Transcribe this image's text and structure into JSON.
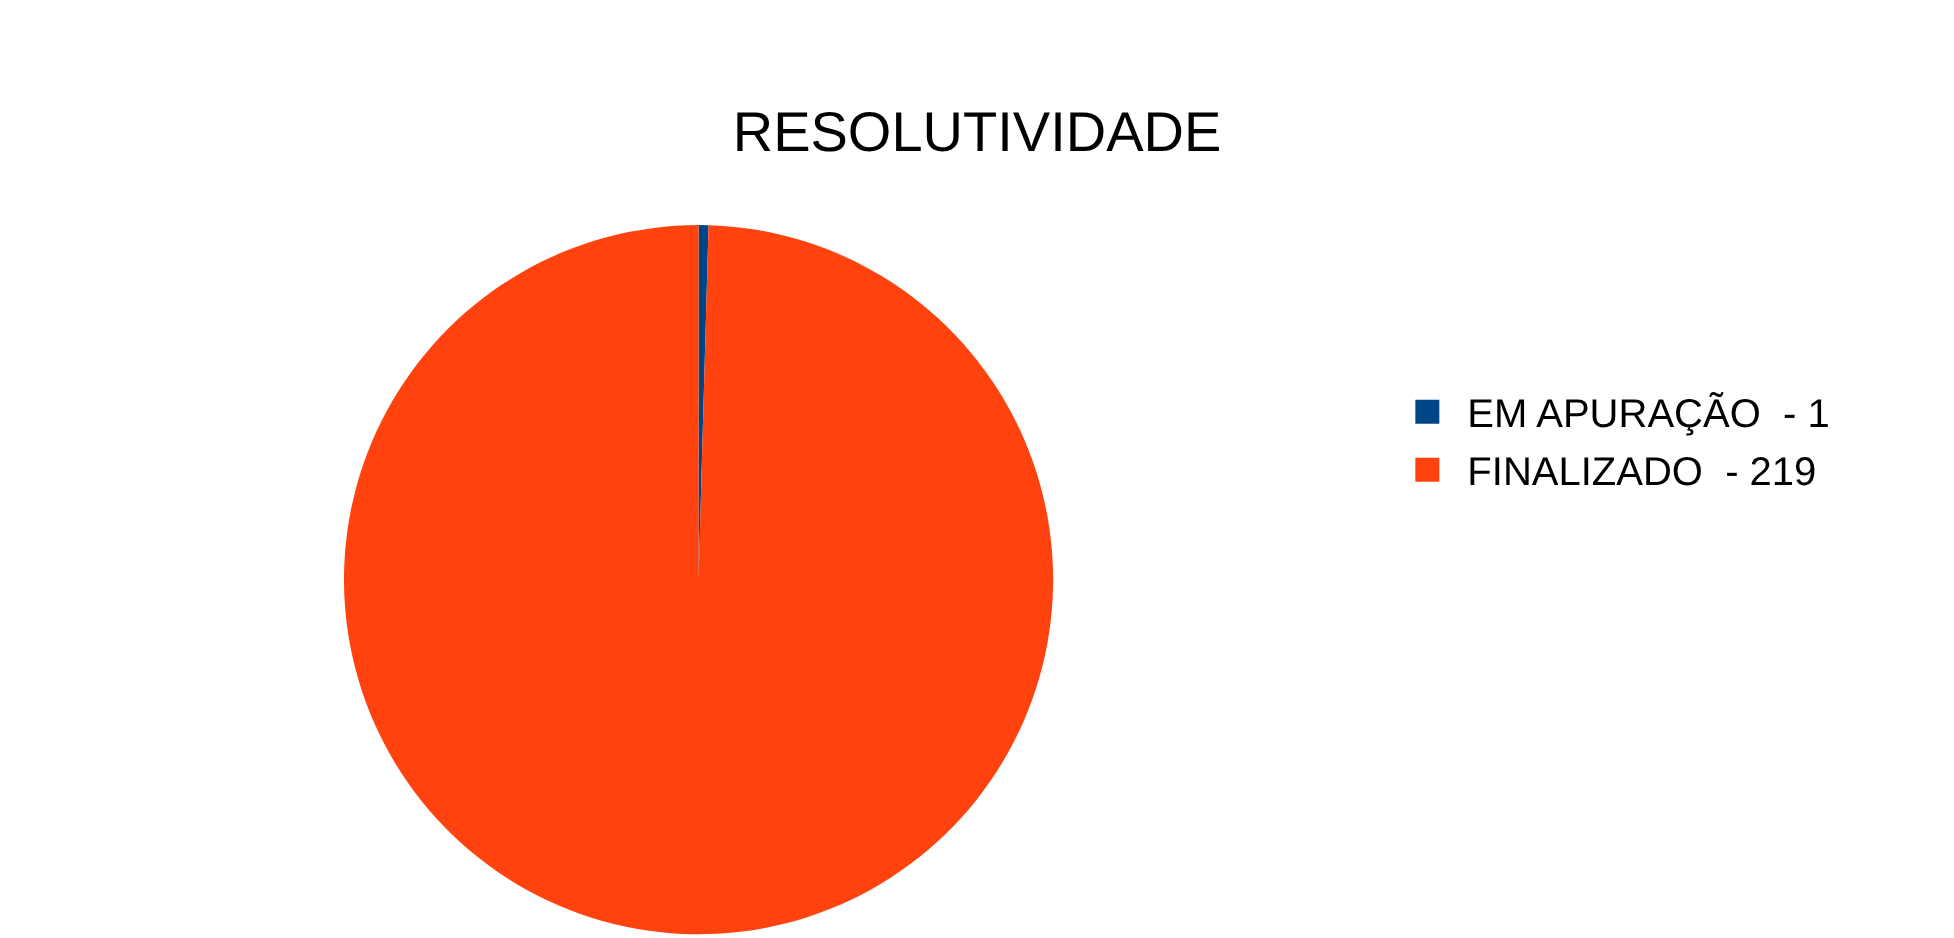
{
  "chart_data": {
    "type": "pie",
    "title": "RESOLUTIVIDADE",
    "categories": [
      "EM APURAÇÃO  - 1",
      "FINALIZADO  - 219"
    ],
    "values": [
      0.45,
      99.55
    ],
    "colors": [
      "#004586",
      "#ff420e"
    ],
    "legend": "right"
  }
}
